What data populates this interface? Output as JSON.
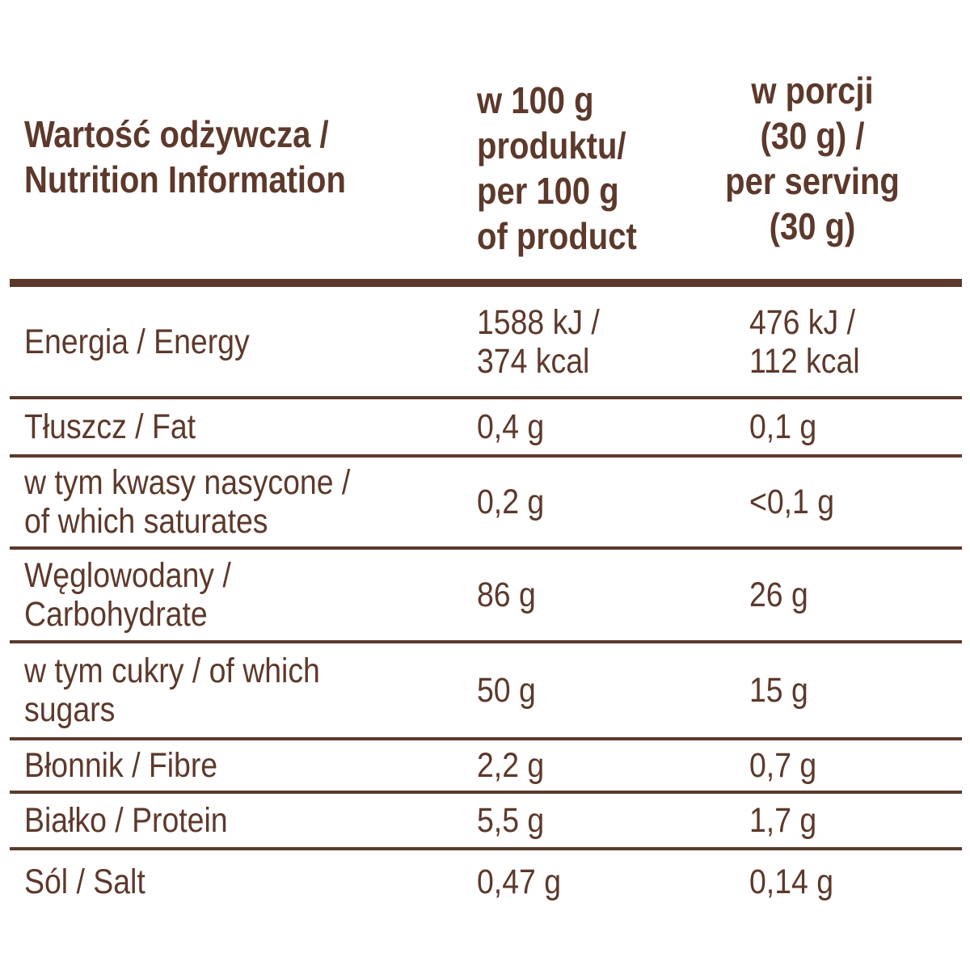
{
  "table": {
    "header": {
      "col1": "Wartość odżywcza /\nNutrition Information",
      "col2": "w 100 g\nproduktu/\nper 100 g\nof product",
      "col3": "w porcji\n(30 g) /\nper serving\n(30 g)"
    },
    "rows": [
      {
        "label": "Energia / Energy",
        "per100": "1588 kJ /\n374 kcal",
        "serving": "476 kJ /\n112 kcal"
      },
      {
        "label": "Tłuszcz / Fat",
        "per100": "0,4 g",
        "serving": "0,1 g"
      },
      {
        "label": "w tym kwasy nasycone /\nof which saturates",
        "per100": "0,2 g",
        "serving": "<0,1 g"
      },
      {
        "label": "Węglowodany /\nCarbohydrate",
        "per100": "86 g",
        "serving": "26 g"
      },
      {
        "label": "w tym cukry / of which\nsugars",
        "per100": "50 g",
        "serving": "15 g"
      },
      {
        "label": "Błonnik / Fibre",
        "per100": "2,2 g",
        "serving": "0,7 g"
      },
      {
        "label": "Białko / Protein",
        "per100": "5,5 g",
        "serving": "1,7 g"
      },
      {
        "label": "Sól / Salt",
        "per100": "0,47 g",
        "serving": "0,14 g"
      }
    ],
    "colors": {
      "text": "#5d392b",
      "divider": "#5b3a2c",
      "background": "#ffffff"
    }
  }
}
